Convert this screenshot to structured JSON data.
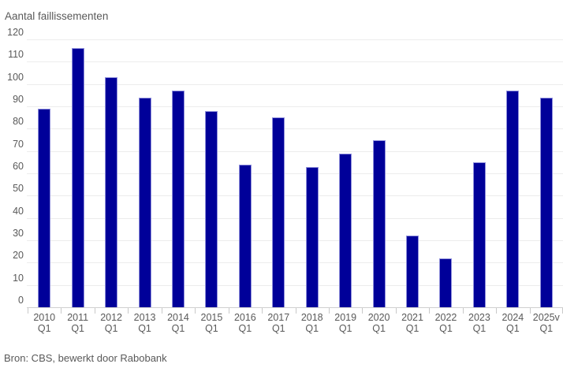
{
  "header": {
    "title": "Aantal faillissementen"
  },
  "footer": {
    "source": "Bron: CBS, bewerkt door Rabobank"
  },
  "colors": {
    "background": "#ffffff",
    "bar": "#000099",
    "bar_border": "#8f8fdb",
    "text": "#595959",
    "gridline": "#ececec",
    "axis": "#d0d0d0"
  },
  "chart_data": {
    "type": "bar",
    "title": "Aantal faillissementen",
    "categories": [
      "2010 Q1",
      "2011 Q1",
      "2012 Q1",
      "2013 Q1",
      "2014 Q1",
      "2015 Q1",
      "2016 Q1",
      "2017 Q1",
      "2018 Q1",
      "2019 Q1",
      "2020 Q1",
      "2021 Q1",
      "2022 Q1",
      "2023 Q1",
      "2024 Q1",
      "2025v Q1"
    ],
    "values": [
      89,
      116,
      103,
      94,
      97,
      88,
      64,
      85,
      63,
      69,
      75,
      32,
      22,
      65,
      97,
      94
    ],
    "xlabel": "",
    "ylabel": "Aantal faillissementen",
    "ylim": [
      0,
      120
    ],
    "ytick_step": 10,
    "grid": true,
    "legend": false,
    "source": "Bron: CBS, bewerkt door Rabobank"
  }
}
